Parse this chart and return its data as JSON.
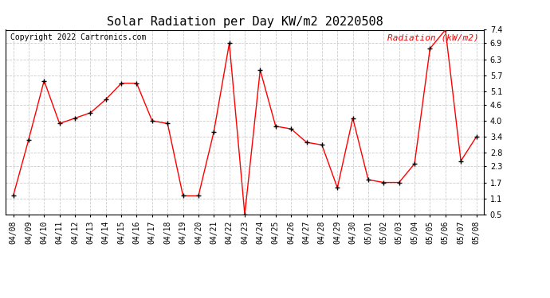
{
  "title": "Solar Radiation per Day KW/m2 20220508",
  "copyright": "Copyright 2022 Cartronics.com",
  "legend_label": "Radiation (kW/m2)",
  "dates": [
    "04/08",
    "04/09",
    "04/10",
    "04/11",
    "04/12",
    "04/13",
    "04/14",
    "04/15",
    "04/16",
    "04/17",
    "04/18",
    "04/19",
    "04/20",
    "04/21",
    "04/22",
    "04/23",
    "04/24",
    "04/25",
    "04/26",
    "04/27",
    "04/28",
    "04/29",
    "04/30",
    "05/01",
    "05/02",
    "05/03",
    "05/04",
    "05/05",
    "05/06",
    "05/07",
    "05/08"
  ],
  "values": [
    1.2,
    3.3,
    5.5,
    3.9,
    4.1,
    4.3,
    4.8,
    5.4,
    5.4,
    4.0,
    3.9,
    1.2,
    1.2,
    3.6,
    6.9,
    0.5,
    5.9,
    3.8,
    3.7,
    3.2,
    3.1,
    1.5,
    4.1,
    1.8,
    1.7,
    1.7,
    2.4,
    6.7,
    7.4,
    2.5,
    3.4
  ],
  "line_color": "#ff0000",
  "marker_color": "#000000",
  "background_color": "#ffffff",
  "grid_color": "#cccccc",
  "title_color": "#000000",
  "legend_color": "#ff0000",
  "copyright_color": "#000000",
  "ylim": [
    0.5,
    7.4
  ],
  "yticks": [
    0.5,
    1.1,
    1.7,
    2.3,
    2.8,
    3.4,
    4.0,
    4.6,
    5.1,
    5.7,
    6.3,
    6.9,
    7.4
  ],
  "title_fontsize": 11,
  "axis_fontsize": 7,
  "legend_fontsize": 8,
  "copyright_fontsize": 7
}
